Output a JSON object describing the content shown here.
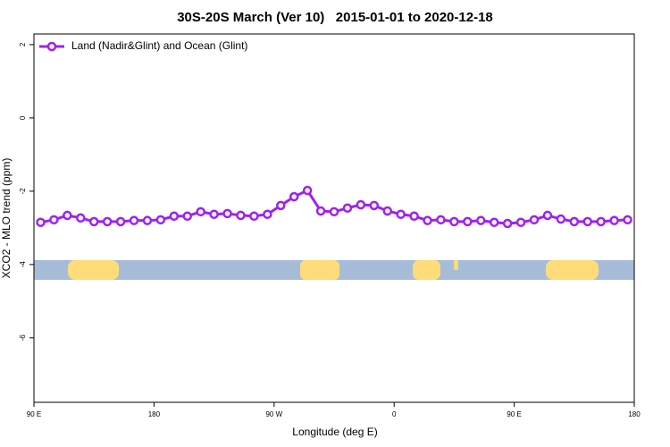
{
  "chart_data": {
    "type": "line",
    "title": "30S-20S March (Ver 10)   2015-01-01 to 2020-12-18",
    "x_label": "Longitude (deg E)",
    "y_label": "XCO2 - MLO trend (ppm)",
    "x": [
      95,
      105,
      115,
      125,
      135,
      145,
      155,
      165,
      175,
      185,
      195,
      205,
      215,
      225,
      235,
      245,
      255,
      265,
      275,
      285,
      295,
      305,
      315,
      325,
      335,
      345,
      355,
      365,
      375,
      385,
      395,
      405,
      415,
      425,
      435,
      445,
      455,
      465,
      475,
      485,
      495,
      505,
      515,
      525,
      535
    ],
    "series": [
      {
        "name": "Land (Nadir&Glint) and Ocean (Glint)",
        "color": "#a020f0",
        "values": [
          -2.85,
          -2.78,
          -2.66,
          -2.73,
          -2.83,
          -2.83,
          -2.83,
          -2.8,
          -2.8,
          -2.78,
          -2.68,
          -2.68,
          -2.56,
          -2.63,
          -2.61,
          -2.66,
          -2.68,
          -2.63,
          -2.39,
          -2.15,
          -1.98,
          -2.54,
          -2.56,
          -2.46,
          -2.37,
          -2.39,
          -2.54,
          -2.63,
          -2.68,
          -2.8,
          -2.78,
          -2.83,
          -2.83,
          -2.8,
          -2.85,
          -2.88,
          -2.85,
          -2.78,
          -2.66,
          -2.76,
          -2.83,
          -2.83,
          -2.83,
          -2.8,
          -2.78
        ]
      }
    ],
    "xlim": [
      90,
      540
    ],
    "xticks": [
      {
        "value": 90,
        "label": "90 E"
      },
      180,
      {
        "value": 270,
        "label": "90 W"
      },
      {
        "value": 360,
        "label": "0"
      },
      {
        "value": 450,
        "label": "90 E"
      },
      {
        "value": 540,
        "label": "180"
      }
    ],
    "ylim": [
      -7.76,
      2.29
    ],
    "yticks": [
      -6,
      -4,
      -2,
      0,
      2
    ],
    "legend": "top-left",
    "grid": false
  }
}
